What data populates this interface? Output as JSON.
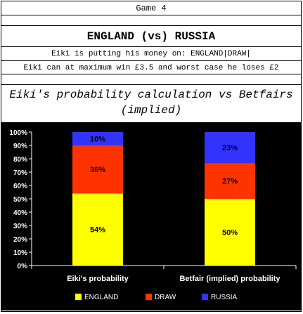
{
  "header": {
    "game": "Game 4",
    "match": "ENGLAND (vs) RUSSIA",
    "bet_line": "Eiki is putting his money on: ENGLAND|DRAW|",
    "win_line": "Eiki can at maximum win £3.5 and worst case he loses £2",
    "subtitle_line1": "Eiki's probability calculation vs Betfairs",
    "subtitle_line2": "(implied)"
  },
  "colors": {
    "ENGLAND": "#ffff00",
    "DRAW": "#ff3300",
    "RUSSIA": "#3333ff"
  },
  "chart_data": {
    "type": "bar",
    "stacked": true,
    "categories": [
      "Eiki's probability",
      "Betfair (implied) probability"
    ],
    "series": [
      {
        "name": "ENGLAND",
        "values": [
          54,
          50
        ]
      },
      {
        "name": "DRAW",
        "values": [
          36,
          27
        ]
      },
      {
        "name": "RUSSIA",
        "values": [
          10,
          23
        ]
      }
    ],
    "ylim": [
      0,
      100
    ],
    "yticks": [
      "0%",
      "10%",
      "20%",
      "30%",
      "40%",
      "50%",
      "60%",
      "70%",
      "80%",
      "90%",
      "100%"
    ],
    "data_labels": [
      [
        "54%",
        "50%"
      ],
      [
        "36%",
        "27%"
      ],
      [
        "10%",
        "23%"
      ]
    ],
    "legend_position": "bottom"
  }
}
